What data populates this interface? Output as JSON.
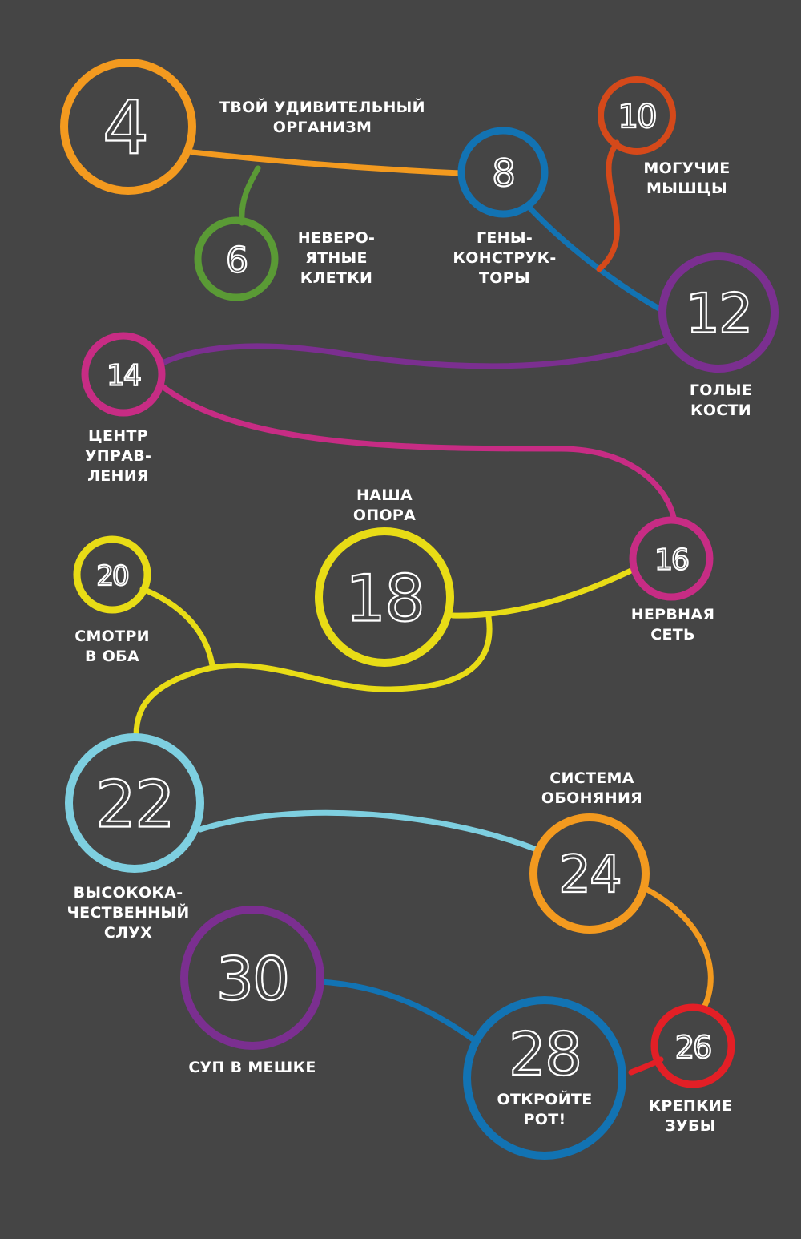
{
  "colors": {
    "background": "#454545",
    "orange": "#f39a1f",
    "green": "#5a9a35",
    "blue": "#1273b3",
    "red_orange": "#d5491a",
    "purple": "#7b2f90",
    "magenta": "#c72c84",
    "yellow": "#e8dc16",
    "light_blue": "#7ecfe0",
    "red": "#e31f26",
    "text": "#ffffff"
  },
  "nodes": [
    {
      "id": "n4",
      "number": "4",
      "color": "#f39a1f",
      "label": "ТВОЙ УДИВИТЕЛЬНЫЙ\nОРГАНИЗМ"
    },
    {
      "id": "n6",
      "number": "6",
      "color": "#5a9a35",
      "label": "НЕВЕРО-\nЯТНЫЕ\nКЛЕТКИ"
    },
    {
      "id": "n8",
      "number": "8",
      "color": "#1273b3",
      "label": "ГЕНЫ-\nКОНСТРУК-\nТОРЫ"
    },
    {
      "id": "n10",
      "number": "10",
      "color": "#d5491a",
      "label": "МОГУЧИЕ\nМЫШЦЫ"
    },
    {
      "id": "n12",
      "number": "12",
      "color": "#7b2f90",
      "label": "ГОЛЫЕ\nКОСТИ"
    },
    {
      "id": "n14",
      "number": "14",
      "color": "#c72c84",
      "label": "ЦЕНТР УПРАВ-\nЛЕНИЯ"
    },
    {
      "id": "n16",
      "number": "16",
      "color": "#c72c84",
      "label": "НЕРВНАЯ\nСЕТЬ"
    },
    {
      "id": "n18",
      "number": "18",
      "color": "#e8dc16",
      "label": "НАША\nОПОРА"
    },
    {
      "id": "n20",
      "number": "20",
      "color": "#e8dc16",
      "label": "СМОТРИ\nВ ОБА"
    },
    {
      "id": "n22",
      "number": "22",
      "color": "#7ecfe0",
      "label": "ВЫСОКОКА-\nЧЕСТВЕННЫЙ\nСЛУХ"
    },
    {
      "id": "n24",
      "number": "24",
      "color": "#f39a1f",
      "label": "СИСТЕМА\nОБОНЯНИЯ"
    },
    {
      "id": "n26",
      "number": "26",
      "color": "#e31f26",
      "label": "КРЕПКИЕ\nЗУБЫ"
    },
    {
      "id": "n28",
      "number": "28",
      "color": "#1273b3",
      "label": "ОТКРОЙТЕ\nРОТ!"
    },
    {
      "id": "n30",
      "number": "30",
      "color": "#7b2f90",
      "label": "СУП В МЕШКЕ"
    }
  ]
}
